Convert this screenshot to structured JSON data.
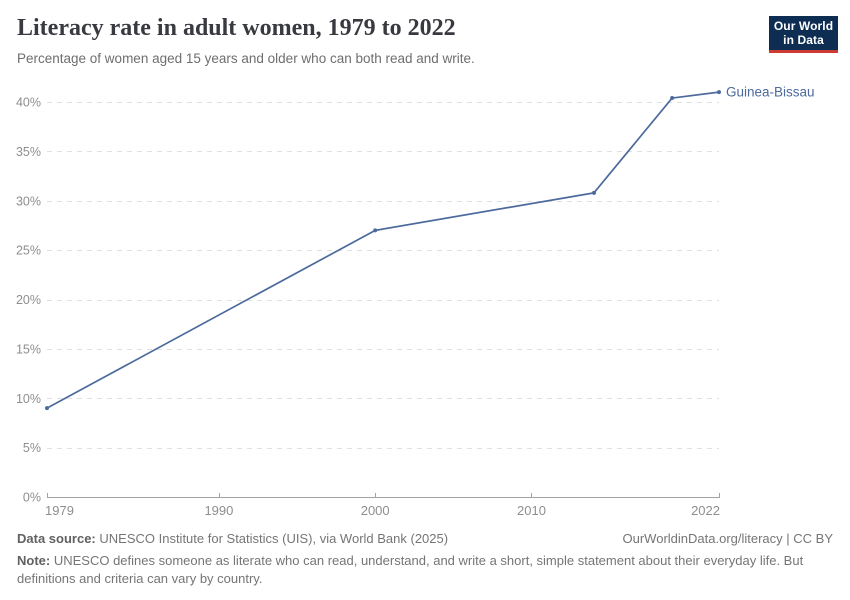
{
  "header": {
    "logo_line1": "Our World",
    "logo_line2": "in Data"
  },
  "chart_data": {
    "type": "line",
    "title": "Literacy rate in adult women, 1979 to 2022",
    "subtitle": "Percentage of women aged 15 years and older who can both read and write.",
    "entity": "Guinea-Bissau",
    "series": [
      {
        "name": "Guinea-Bissau",
        "color": "#4c6a9c",
        "x": [
          1979,
          2000,
          2014,
          2019,
          2022
        ],
        "values": [
          9,
          27,
          30.8,
          40.4,
          41
        ]
      }
    ],
    "xlim": [
      1979,
      2022
    ],
    "ylim": [
      0,
      40
    ],
    "x_ticks": [
      1979,
      1990,
      2000,
      2010,
      2022
    ],
    "y_ticks": [
      0,
      5,
      10,
      15,
      20,
      25,
      30,
      35,
      40
    ],
    "y_suffix": "%",
    "grid": "dashed-horizontal",
    "legend_position": "end-of-line-label"
  },
  "footer": {
    "source_label": "Data source:",
    "source_text": "UNESCO Institute for Statistics (UIS), via World Bank (2025)",
    "link_text": "OurWorldinData.org/literacy | CC BY",
    "note_label": "Note:",
    "note_text": "UNESCO defines someone as literate who can read, understand, and write a short, simple statement about their everyday life. But definitions and criteria can vary by country."
  },
  "colors": {
    "line": "#4c6a9c",
    "logo_bg": "#0d2e52",
    "logo_accent": "#cc3b33",
    "grid": "#e0e0e0",
    "axis": "#a3a3a3",
    "tick_label": "#8e8e8e",
    "title_text": "#383a40",
    "subtitle_text": "#6e6e6e",
    "footer_text": "#757575"
  }
}
